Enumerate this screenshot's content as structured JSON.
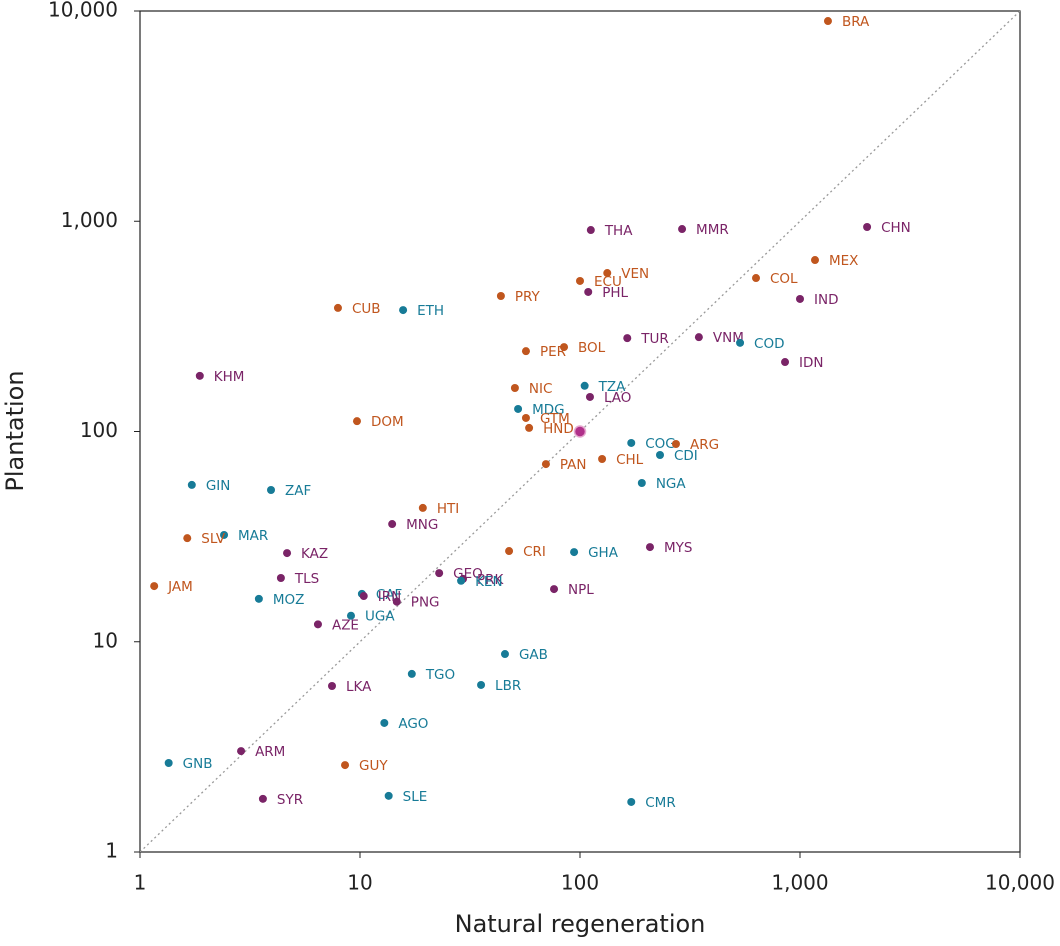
{
  "chart_data": {
    "type": "scatter",
    "xlabel": "Natural regeneration",
    "ylabel": "Plantation",
    "xlim": [
      1,
      10000
    ],
    "ylim": [
      1,
      10000
    ],
    "xlog": true,
    "ylog": true,
    "diagonal": true,
    "xticks": [
      1,
      10,
      100,
      {
        "value": 1000,
        "label": "1,000"
      },
      {
        "value": 10000,
        "label": "10,000"
      }
    ],
    "yticks": [
      1,
      10,
      100,
      {
        "value": 1000,
        "label": "1,000"
      },
      {
        "value": 10000,
        "label": "10,000"
      }
    ],
    "labels": [
      "BRA",
      "CHN",
      "THA",
      "MMR",
      "MEX",
      "VEN",
      "ECU",
      "COL",
      "PHL",
      "PRY",
      "IND",
      "CUB",
      "ETH",
      "TUR",
      "VNM",
      "COD",
      "BOL",
      "PER",
      "IDN",
      "KHM",
      "NIC",
      "TZA",
      "LAO",
      "MDG",
      "GTM",
      "DOM",
      "HND",
      "COG",
      "ARG",
      "CDI",
      "CHL",
      "PAN",
      "NGA",
      "GIN",
      "ZAF",
      "HTI",
      "MNG",
      "MAR",
      "SLV",
      "MYS",
      "CRI",
      "GHA",
      "KAZ",
      "GEO",
      "TLS",
      "PRK",
      "KEN",
      "JAM",
      "NPL",
      "CAF",
      "IRN",
      "MOZ",
      "PNG",
      "UGA",
      "AZE",
      "GAB",
      "TGO",
      "LBR",
      "LKA",
      "AGO",
      "ARM",
      "GNB",
      "GUY",
      "SYR",
      "SLE",
      "CMR"
    ],
    "x": [
      1340,
      2018,
      112,
      291,
      1170,
      133,
      100,
      631,
      109,
      43.7,
      1000,
      7.94,
      15.7,
      164,
      347,
      534,
      84.6,
      56.8,
      855,
      1.87,
      50.6,
      105,
      111,
      52.3,
      56.8,
      9.69,
      58.7,
      171,
      273,
      231,
      126,
      70,
      191,
      1.72,
      3.94,
      19.3,
      14,
      2.41,
      1.64,
      208,
      47.6,
      94,
      4.66,
      22.9,
      4.37,
      29.4,
      28.8,
      1.16,
      76.2,
      10.2,
      10.4,
      3.47,
      14.7,
      9.1,
      6.44,
      45.6,
      17.2,
      35.5,
      7.46,
      12.9,
      2.88,
      1.35,
      8.55,
      3.62,
      13.5,
      171
    ],
    "y": [
      8960,
      939,
      908,
      918,
      654,
      567,
      520,
      537,
      461,
      441,
      427,
      387,
      378,
      278,
      281,
      264,
      252,
      241,
      214,
      184,
      161,
      165,
      146,
      128,
      116,
      112,
      104,
      88.2,
      87.2,
      77.3,
      74,
      70,
      56.9,
      55.7,
      52.7,
      43.3,
      36.3,
      32.2,
      31.1,
      28.2,
      27,
      26.7,
      26.4,
      21.2,
      20.1,
      19.9,
      19.5,
      18.4,
      17.8,
      16.9,
      16.5,
      16,
      15.5,
      13.3,
      12.1,
      8.74,
      7.03,
      6.23,
      6.16,
      4.11,
      3.02,
      2.65,
      2.59,
      1.79,
      1.85,
      1.73
    ],
    "colors": [
      "#c0561e",
      "#7a2467",
      "#7a2467",
      "#7a2467",
      "#c0561e",
      "#c0561e",
      "#c0561e",
      "#c0561e",
      "#7a2467",
      "#c0561e",
      "#7a2467",
      "#c0561e",
      "#177b97",
      "#7a2467",
      "#7a2467",
      "#177b97",
      "#c0561e",
      "#c0561e",
      "#7a2467",
      "#7a2467",
      "#c0561e",
      "#177b97",
      "#7a2467",
      "#177b97",
      "#c0561e",
      "#c0561e",
      "#c0561e",
      "#177b97",
      "#c0561e",
      "#177b97",
      "#c0561e",
      "#c0561e",
      "#177b97",
      "#177b97",
      "#177b97",
      "#c0561e",
      "#7a2467",
      "#177b97",
      "#c0561e",
      "#7a2467",
      "#c0561e",
      "#177b97",
      "#7a2467",
      "#7a2467",
      "#7a2467",
      "#7a2467",
      "#177b97",
      "#c0561e",
      "#7a2467",
      "#177b97",
      "#7a2467",
      "#177b97",
      "#7a2467",
      "#177b97",
      "#7a2467",
      "#177b97",
      "#177b97",
      "#177b97",
      "#7a2467",
      "#177b97",
      "#7a2467",
      "#177b97",
      "#c0561e",
      "#7a2467",
      "#177b97",
      "#177b97"
    ],
    "highlight": {
      "x": 100,
      "y": 100,
      "color": "#b0308a"
    }
  }
}
